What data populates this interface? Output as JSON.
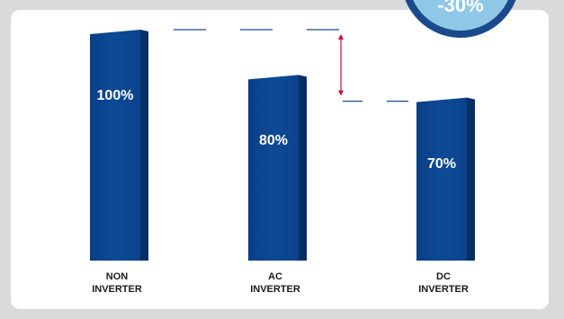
{
  "chart_data": {
    "type": "bar",
    "categories": [
      "NON\nINVERTER",
      "AC\nINVERTER",
      "DC\nINVERTER"
    ],
    "values": [
      100,
      80,
      70
    ],
    "value_labels": [
      "100%",
      "80%",
      "70%"
    ],
    "ylim": [
      0,
      100
    ],
    "colors": {
      "bar_front": "#0d4a96",
      "bar_side": "#062f66",
      "connector": "#1b4a8c",
      "arrow": "#c8102e"
    }
  },
  "badge": {
    "text": "-30%"
  }
}
